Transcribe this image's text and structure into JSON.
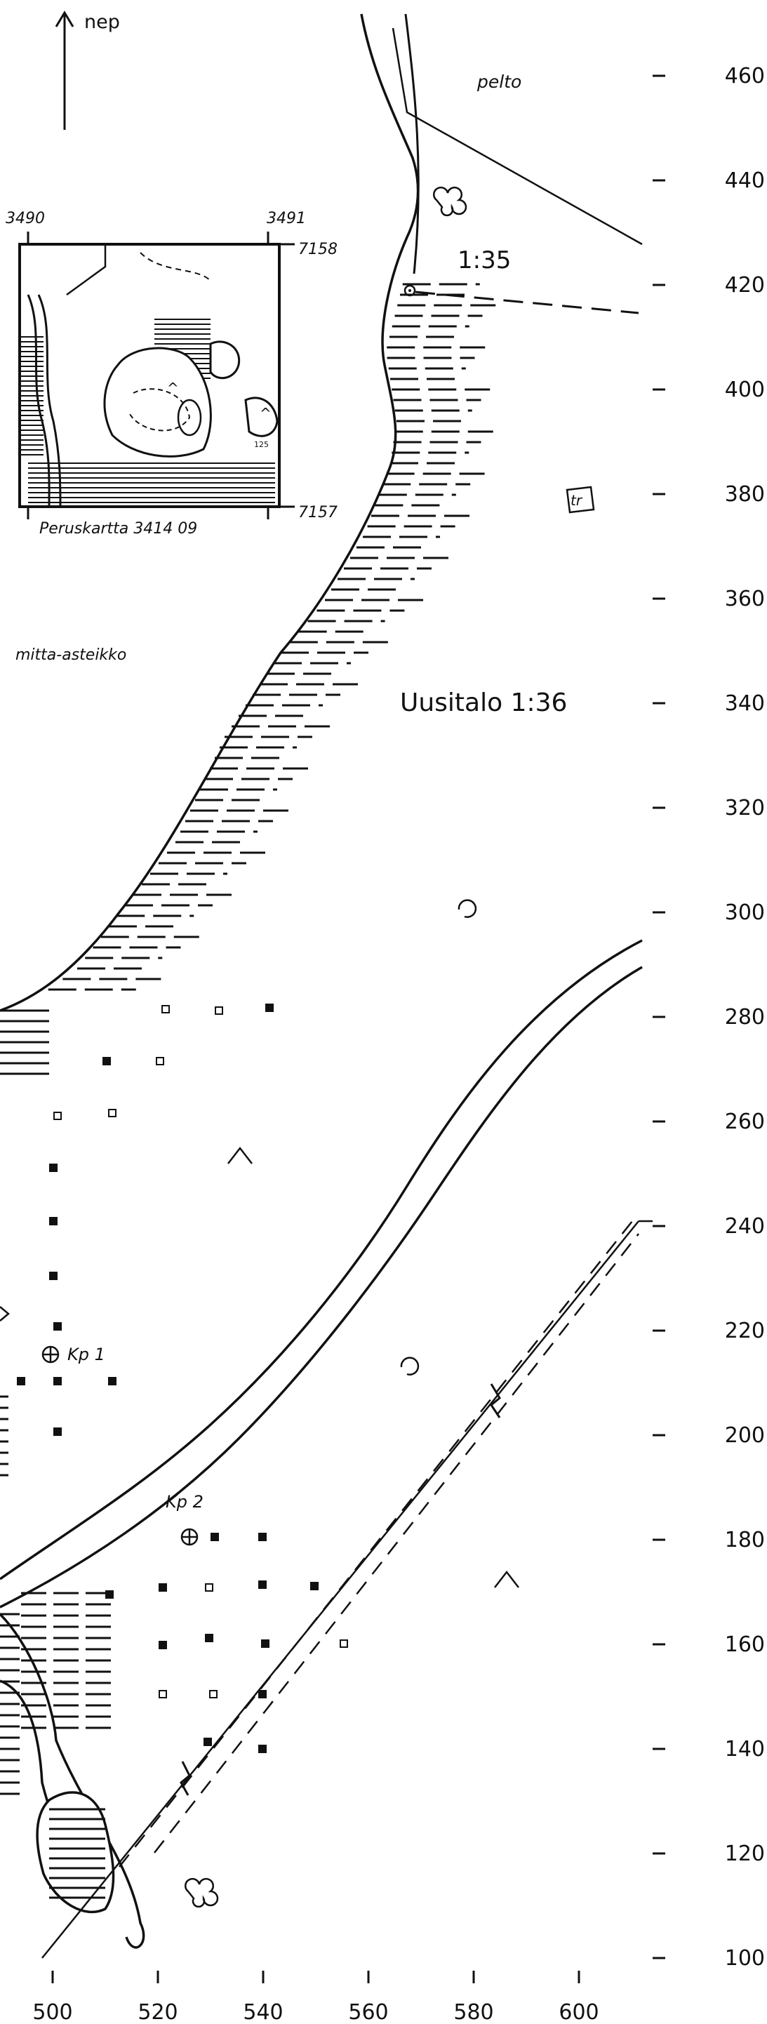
{
  "north_label": "nep",
  "inset": {
    "corner_labels": [
      "3490",
      "3491",
      "7158",
      "7157"
    ],
    "caption": "Peruskartta 3414 09",
    "spot_height": "125"
  },
  "labels": {
    "field": "pelto",
    "site_1": "1:35",
    "site_2": "Uusitalo 1:36",
    "tree_marker": "tr",
    "scale_note": "mitta-asteikko",
    "control_point_1": "Kp 1",
    "control_point_2": "Kp 2"
  },
  "y_scale": [
    "460",
    "440",
    "420",
    "400",
    "380",
    "360",
    "340",
    "320",
    "300",
    "280",
    "260",
    "240",
    "220",
    "200",
    "180",
    "160",
    "140",
    "120",
    "100"
  ],
  "x_scale": [
    "500",
    "520",
    "540",
    "560",
    "580",
    "600"
  ],
  "colors": {
    "ink": "#111111",
    "paper": "#ffffff"
  }
}
